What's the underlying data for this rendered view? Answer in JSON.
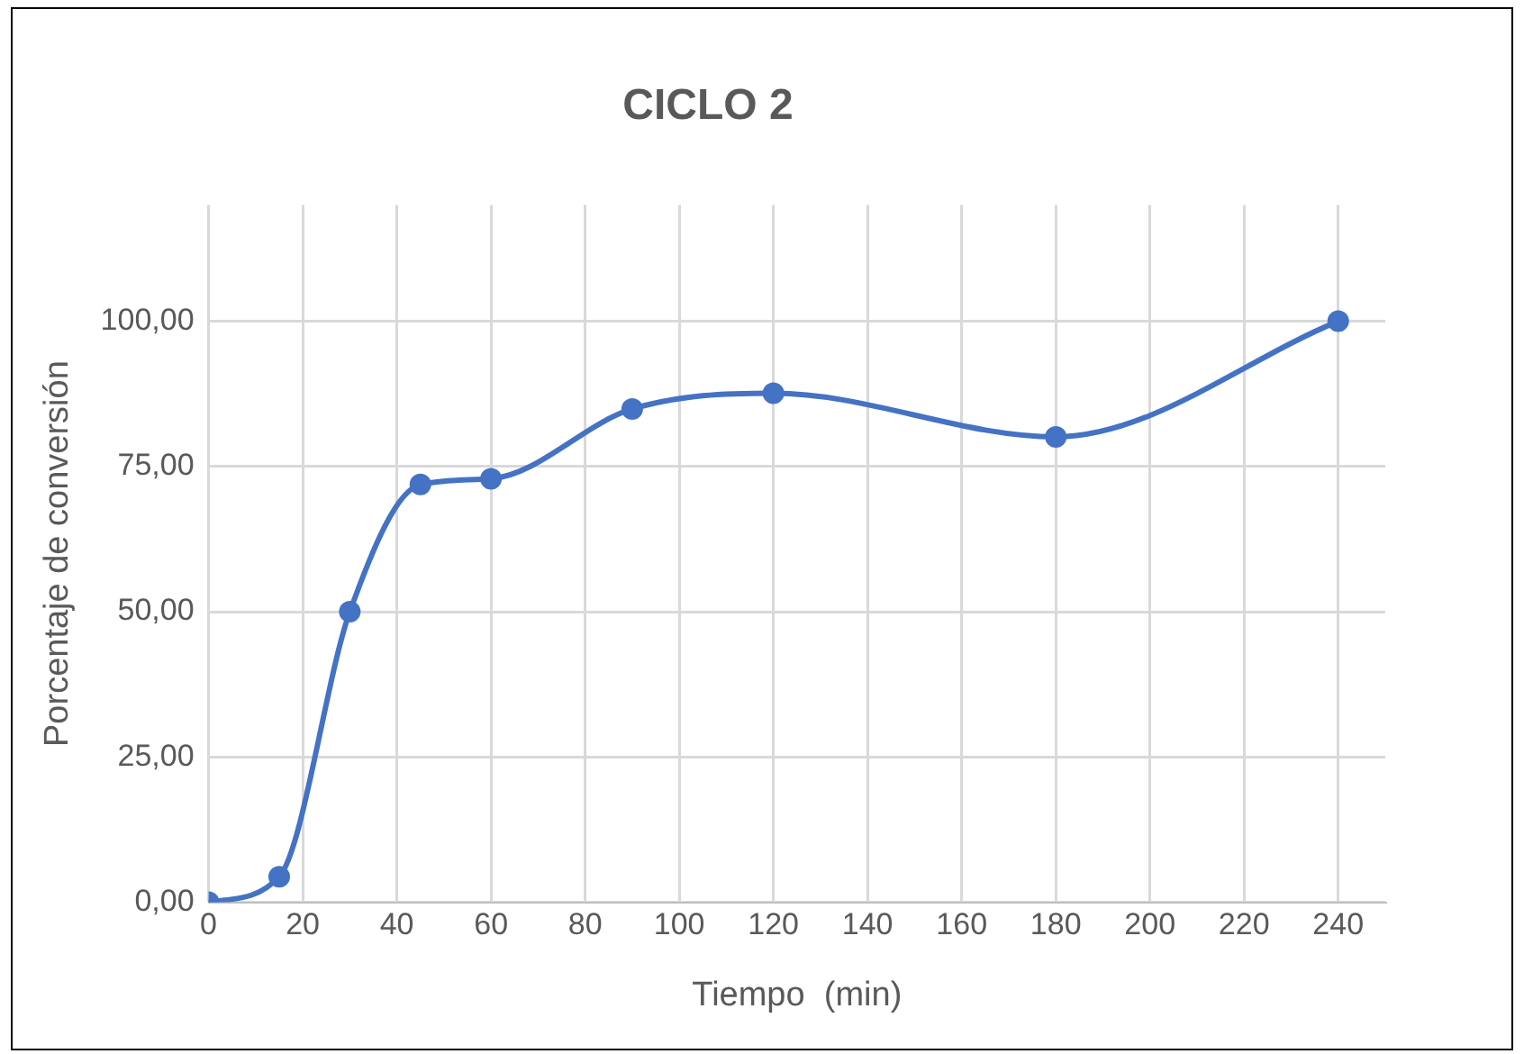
{
  "chart_data": {
    "type": "line",
    "title": "CICLO 2",
    "xlabel": "Tiempo  (min)",
    "ylabel": "Porcentaje de conversión",
    "x": [
      0,
      15,
      30,
      45,
      60,
      90,
      120,
      180,
      240
    ],
    "series": [
      {
        "color": "#4472c4",
        "values": [
          0,
          4.4,
          50,
          71.9,
          72.9,
          84.9,
          87.6,
          80.1,
          100
        ]
      }
    ],
    "xlim": [
      0,
      250
    ],
    "xticks": [
      0,
      20,
      40,
      60,
      80,
      100,
      120,
      140,
      160,
      180,
      200,
      220,
      240
    ],
    "ylim": [
      0,
      120
    ],
    "yticks": [
      {
        "value": 0,
        "label": "0,00"
      },
      {
        "value": 25,
        "label": "25,00"
      },
      {
        "value": 50,
        "label": "50,00"
      },
      {
        "value": 75,
        "label": "75,00"
      },
      {
        "value": 100,
        "label": "100,00"
      }
    ],
    "grid": true,
    "legend": false,
    "marker": "circle",
    "line_style": "solid"
  }
}
